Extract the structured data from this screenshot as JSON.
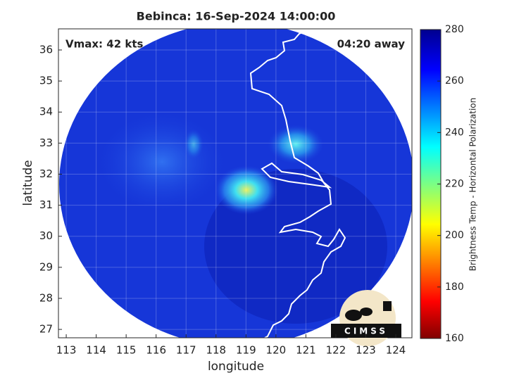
{
  "chart_data": {
    "type": "map",
    "title": "Bebinca: 16-Sep-2024 14:00:00",
    "annotations": [
      "Vmax: 42 kts",
      "04:20 away"
    ],
    "x_label": "longitude",
    "y_label": "latitude",
    "xlim": [
      112.74,
      124.54
    ],
    "ylim": [
      26.73,
      36.68
    ],
    "xticks": [
      113,
      114,
      115,
      116,
      117,
      118,
      119,
      120,
      121,
      122,
      123,
      124
    ],
    "yticks": [
      27,
      28,
      29,
      30,
      31,
      32,
      33,
      34,
      35,
      36
    ],
    "grid": true,
    "colorbar": {
      "label": "Brightness Temp - Horizontal Polarization",
      "lim": [
        160,
        280
      ],
      "ticks": [
        160,
        180,
        200,
        220,
        240,
        260,
        280
      ]
    },
    "logo": "CIMSS"
  }
}
